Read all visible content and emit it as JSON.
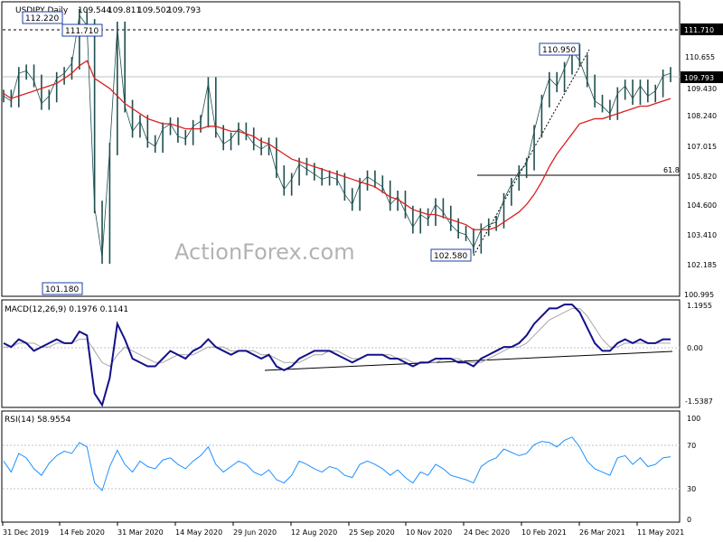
{
  "chart_data": [
    {
      "type": "candlestick",
      "title": "USDJPY,Daily",
      "ohlc_readout": [
        "109.544",
        "109.811",
        "109.502",
        "109.793"
      ],
      "last_price": "109.793",
      "watermark": "ActionForex.com",
      "ylim": [
        100.995,
        112.6
      ],
      "y_tick_labels": [
        "110.655",
        "109.430",
        "108.240",
        "107.015",
        "105.820",
        "104.600",
        "103.410",
        "102.185",
        "100.995"
      ],
      "x_tick_labels": [
        "31 Dec 2019",
        "14 Feb 2020",
        "31 Mar 2020",
        "14 May 2020",
        "29 Jun 2020",
        "12 Aug 2020",
        "25 Sep 2020",
        "10 Nov 2020",
        "24 Dec 2020",
        "10 Feb 2021",
        "26 Mar 2021",
        "11 May 2021"
      ],
      "reference_lines": {
        "resistance": "111.710",
        "current": "109.793",
        "fib_label": "61.8",
        "fib_level": 105.82
      },
      "callouts": [
        "112.220",
        "111.710",
        "101.180",
        "110.950",
        "102.580"
      ],
      "series": [
        {
          "name": "price",
          "values": [
            108.9,
            108.7,
            109.8,
            109.9,
            109.5,
            108.6,
            108.9,
            109.6,
            109.8,
            110.2,
            112.1,
            111.7,
            104.5,
            102.5,
            106.8,
            111.6,
            108.5,
            107.5,
            107.9,
            107.1,
            106.9,
            107.6,
            107.8,
            107.3,
            107.2,
            107.7,
            107.9,
            109.4,
            107.5,
            107.0,
            107.2,
            107.6,
            107.4,
            107.0,
            106.8,
            107.0,
            105.9,
            105.2,
            105.6,
            106.2,
            106.0,
            105.8,
            105.6,
            105.7,
            105.6,
            105.0,
            104.6,
            105.4,
            105.7,
            105.5,
            105.3,
            104.6,
            104.9,
            104.3,
            103.7,
            104.2,
            104.0,
            104.6,
            104.3,
            103.8,
            103.5,
            103.4,
            102.9,
            103.6,
            103.8,
            103.9,
            104.8,
            105.4,
            105.9,
            106.2,
            107.5,
            108.7,
            109.6,
            109.3,
            110.0,
            110.7,
            110.3,
            109.5,
            108.7,
            108.5,
            108.2,
            109.0,
            109.3,
            108.8,
            109.3,
            108.9,
            109.1,
            109.7,
            109.8
          ]
        },
        {
          "name": "ma",
          "values": [
            109.0,
            108.8,
            108.9,
            109.0,
            109.1,
            109.2,
            109.3,
            109.4,
            109.6,
            109.8,
            110.1,
            110.3,
            109.6,
            109.4,
            109.2,
            108.9,
            108.6,
            108.4,
            108.2,
            108.0,
            107.9,
            107.8,
            107.8,
            107.7,
            107.6,
            107.6,
            107.6,
            107.7,
            107.7,
            107.6,
            107.5,
            107.5,
            107.4,
            107.3,
            107.1,
            107.0,
            106.8,
            106.6,
            106.4,
            106.3,
            106.2,
            106.1,
            106.0,
            105.9,
            105.8,
            105.7,
            105.6,
            105.5,
            105.4,
            105.3,
            105.1,
            104.9,
            104.8,
            104.6,
            104.4,
            104.3,
            104.2,
            104.2,
            104.1,
            104.0,
            103.9,
            103.8,
            103.6,
            103.6,
            103.6,
            103.7,
            103.9,
            104.1,
            104.3,
            104.6,
            105.0,
            105.5,
            106.1,
            106.6,
            107.0,
            107.4,
            107.8,
            107.9,
            108.0,
            108.0,
            108.1,
            108.2,
            108.3,
            108.4,
            108.5,
            108.5,
            108.6,
            108.7,
            108.8
          ]
        }
      ]
    },
    {
      "type": "line",
      "title": "MACD(12,26,9) 0.1976 0.1141",
      "ylim": [
        -1.5387,
        1.1955
      ],
      "y_tick_labels": [
        "1.1955",
        "0.00",
        "-1.5387"
      ],
      "series": [
        {
          "name": "macd",
          "values": [
            0.1,
            0.0,
            0.2,
            0.1,
            -0.1,
            0.0,
            0.1,
            0.2,
            0.1,
            0.1,
            0.4,
            0.3,
            -1.2,
            -1.5,
            -0.8,
            0.6,
            0.2,
            -0.3,
            -0.4,
            -0.5,
            -0.5,
            -0.3,
            -0.1,
            -0.2,
            -0.3,
            -0.1,
            0.0,
            0.2,
            0.0,
            -0.1,
            -0.2,
            -0.1,
            -0.1,
            -0.2,
            -0.3,
            -0.2,
            -0.5,
            -0.6,
            -0.5,
            -0.3,
            -0.2,
            -0.1,
            -0.1,
            -0.1,
            -0.2,
            -0.3,
            -0.4,
            -0.3,
            -0.2,
            -0.2,
            -0.2,
            -0.3,
            -0.3,
            -0.4,
            -0.5,
            -0.4,
            -0.4,
            -0.3,
            -0.3,
            -0.3,
            -0.4,
            -0.4,
            -0.5,
            -0.3,
            -0.2,
            -0.1,
            0.0,
            0.0,
            0.1,
            0.3,
            0.6,
            0.8,
            1.0,
            1.0,
            1.1,
            1.1,
            0.9,
            0.5,
            0.1,
            -0.1,
            -0.1,
            0.1,
            0.2,
            0.1,
            0.2,
            0.1,
            0.1,
            0.2,
            0.2
          ]
        },
        {
          "name": "signal",
          "values": [
            0.0,
            0.0,
            0.1,
            0.1,
            0.1,
            0.0,
            0.0,
            0.1,
            0.1,
            0.1,
            0.2,
            0.2,
            -0.1,
            -0.4,
            -0.5,
            -0.2,
            0.0,
            -0.1,
            -0.2,
            -0.3,
            -0.4,
            -0.4,
            -0.3,
            -0.2,
            -0.2,
            -0.2,
            -0.1,
            0.0,
            0.0,
            0.0,
            -0.1,
            -0.1,
            -0.1,
            -0.1,
            -0.2,
            -0.2,
            -0.3,
            -0.4,
            -0.4,
            -0.4,
            -0.3,
            -0.2,
            -0.2,
            -0.1,
            -0.1,
            -0.2,
            -0.3,
            -0.3,
            -0.2,
            -0.2,
            -0.2,
            -0.2,
            -0.3,
            -0.3,
            -0.4,
            -0.4,
            -0.4,
            -0.4,
            -0.3,
            -0.3,
            -0.3,
            -0.4,
            -0.4,
            -0.4,
            -0.3,
            -0.2,
            -0.1,
            0.0,
            0.0,
            0.1,
            0.3,
            0.5,
            0.7,
            0.8,
            0.9,
            1.0,
            1.0,
            0.8,
            0.5,
            0.2,
            0.0,
            0.0,
            0.1,
            0.1,
            0.1,
            0.1,
            0.1,
            0.1,
            0.1
          ]
        }
      ]
    },
    {
      "type": "line",
      "title": "RSI(14) 58.9554",
      "ylim": [
        0,
        100
      ],
      "y_tick_labels": [
        "100",
        "70",
        "30",
        "0"
      ],
      "series": [
        {
          "name": "rsi",
          "values": [
            55,
            45,
            62,
            58,
            48,
            42,
            53,
            60,
            64,
            62,
            72,
            68,
            35,
            28,
            50,
            65,
            52,
            45,
            55,
            50,
            48,
            56,
            58,
            52,
            48,
            55,
            60,
            68,
            52,
            45,
            50,
            55,
            52,
            45,
            42,
            47,
            38,
            35,
            42,
            55,
            52,
            48,
            45,
            50,
            48,
            42,
            40,
            52,
            55,
            52,
            48,
            42,
            47,
            40,
            35,
            45,
            42,
            52,
            48,
            42,
            40,
            38,
            35,
            50,
            55,
            58,
            66,
            63,
            60,
            62,
            70,
            73,
            72,
            68,
            74,
            77,
            68,
            55,
            48,
            45,
            42,
            58,
            60,
            52,
            58,
            50,
            52,
            58,
            59
          ]
        }
      ]
    }
  ]
}
